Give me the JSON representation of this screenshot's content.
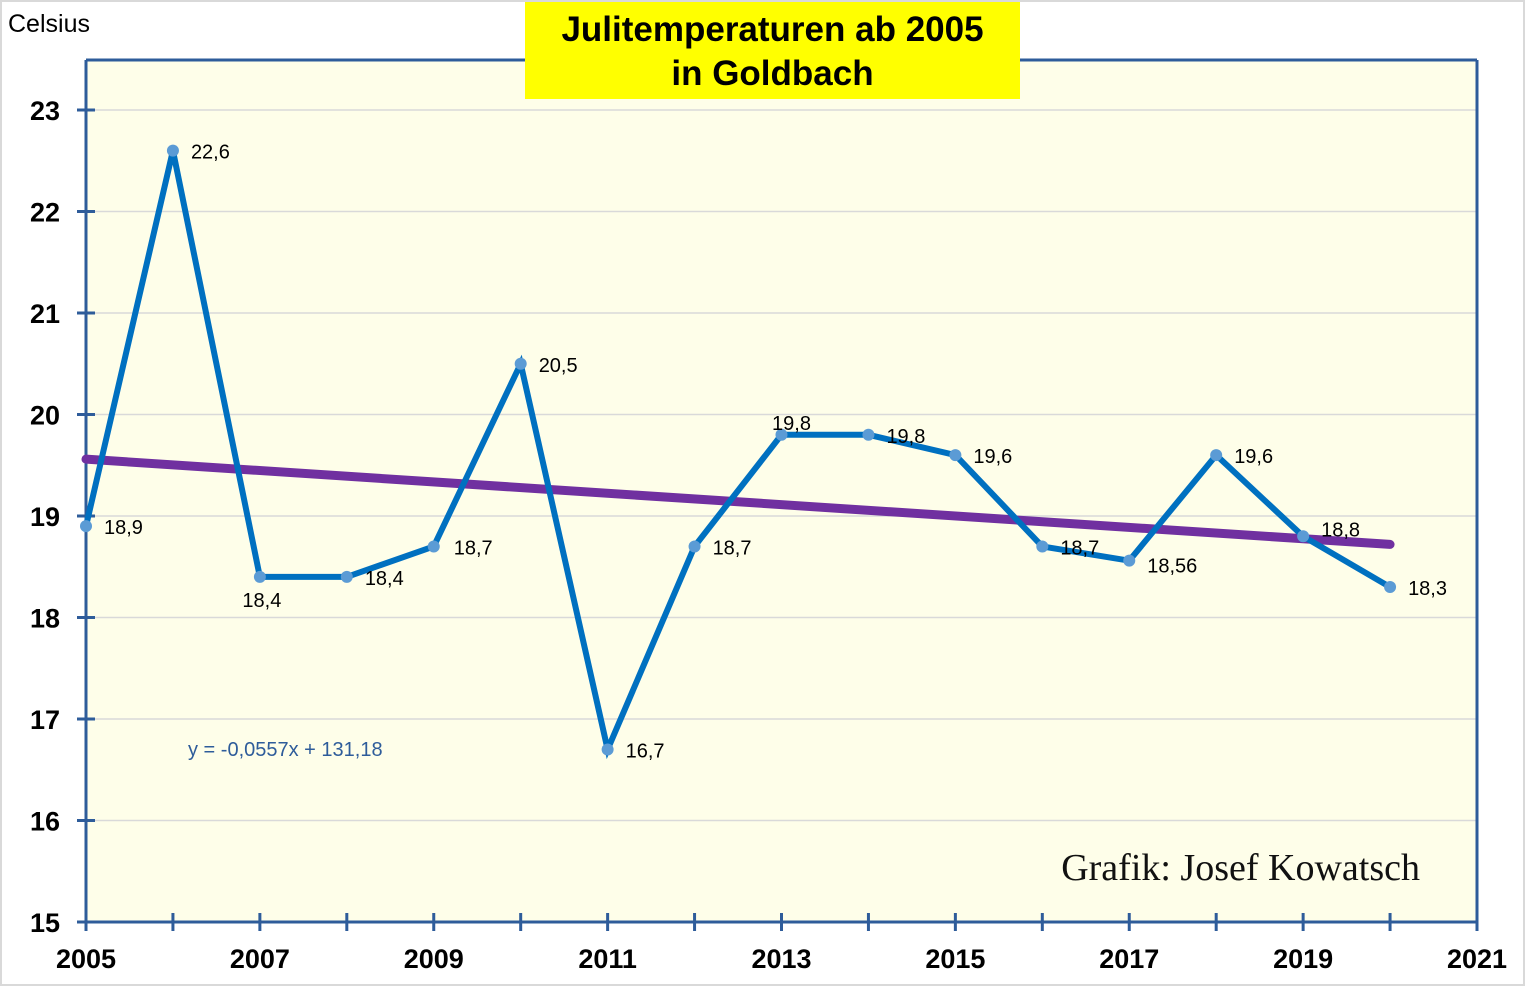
{
  "chart_data": {
    "type": "line",
    "title_line1": "Julitemperaturen ab 2005",
    "title_line2": "in Goldbach",
    "ylabel": "Celsius",
    "xlabel": "",
    "x": [
      2005,
      2006,
      2007,
      2008,
      2009,
      2010,
      2011,
      2012,
      2013,
      2014,
      2015,
      2016,
      2017,
      2018,
      2019,
      2020
    ],
    "series": [
      {
        "name": "Julitemperatur",
        "color": "#0070c0",
        "marker_color": "#5b9bd5",
        "values": [
          18.9,
          22.6,
          18.4,
          18.4,
          18.7,
          20.5,
          16.7,
          18.7,
          19.8,
          19.8,
          19.6,
          18.7,
          18.56,
          19.6,
          18.8,
          18.3
        ],
        "labels": [
          "18,9",
          "22,6",
          "18,4",
          "18,4",
          "18,7",
          "20,5",
          "16,7",
          "18,7",
          "19,8",
          "19,8",
          "19,6",
          "18,7",
          "18,56",
          "19,6",
          "18,8",
          "18,3"
        ]
      }
    ],
    "trendline": {
      "type": "linear",
      "color": "#7030a0",
      "equation": "y = -0,0557x + 131,18",
      "equation_color": "#2e5c9a",
      "start": [
        2005,
        19.56
      ],
      "end": [
        2020,
        18.72
      ]
    },
    "xlim": [
      2005,
      2021
    ],
    "ylim": [
      15,
      23
    ],
    "xticks": [
      2005,
      2007,
      2009,
      2011,
      2013,
      2015,
      2017,
      2019,
      2021
    ],
    "xtick_labels": [
      "2005",
      "2007",
      "2009",
      "2011",
      "2013",
      "2015",
      "2017",
      "2019",
      "2021"
    ],
    "yticks": [
      15,
      16,
      17,
      18,
      19,
      20,
      21,
      22,
      23
    ],
    "ytick_labels": [
      "15",
      "16",
      "17",
      "18",
      "19",
      "20",
      "21",
      "22",
      "23"
    ],
    "grid": "horizontal",
    "legend": "none",
    "plot_background": "#fefee9",
    "axis_color": "#2e5c9a",
    "annotation": "Grafik: Josef Kowatsch"
  }
}
